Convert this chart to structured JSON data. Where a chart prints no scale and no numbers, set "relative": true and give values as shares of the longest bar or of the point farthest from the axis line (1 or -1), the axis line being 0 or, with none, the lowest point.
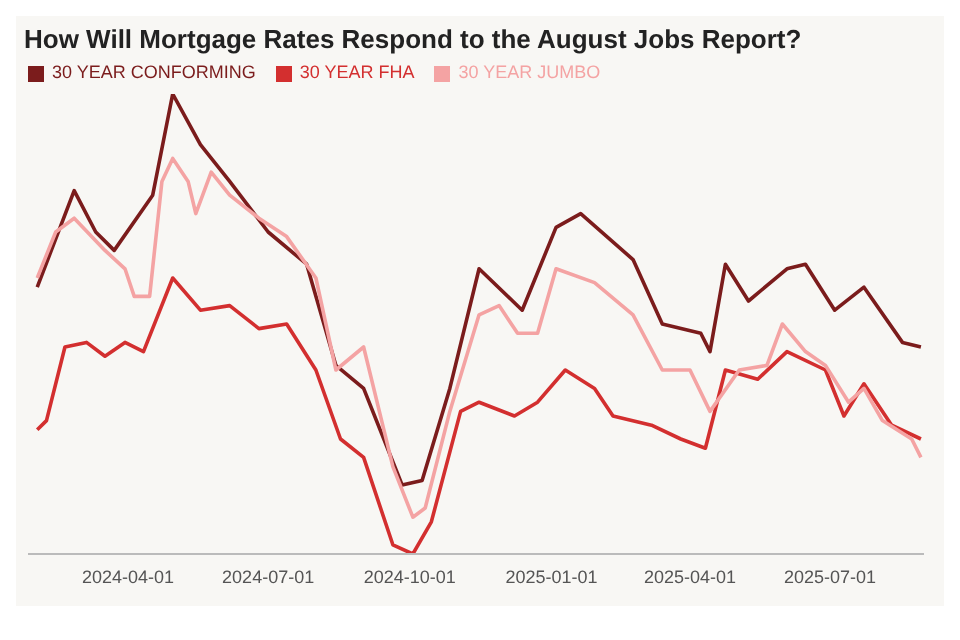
{
  "chart_data": {
    "type": "line",
    "title": "How Will Mortgage Rates Respond to the August Jobs Report?",
    "relative": true,
    "legend": "top left",
    "grid": false,
    "marker": "none",
    "line_style": "solid",
    "xlim": [
      "2024-01-27",
      "2025-08-31"
    ],
    "xticks": [
      "2024-04-01",
      "2024-07-01",
      "2024-10-01",
      "2025-01-01",
      "2025-04-01",
      "2025-07-01"
    ],
    "series": [
      {
        "name": "30 YEAR CONFORMING",
        "color": "#7b1c1c",
        "x": [
          "2024-02-02",
          "2024-02-26",
          "2024-03-11",
          "2024-03-23",
          "2024-04-17",
          "2024-04-30",
          "2024-05-18",
          "2024-06-06",
          "2024-07-01",
          "2024-07-26",
          "2024-08-14",
          "2024-09-01",
          "2024-09-26",
          "2024-10-09",
          "2024-10-27",
          "2024-11-15",
          "2024-12-13",
          "2025-01-04",
          "2025-01-20",
          "2025-02-23",
          "2025-03-14",
          "2025-04-08",
          "2025-04-14",
          "2025-04-24",
          "2025-05-09",
          "2025-06-03",
          "2025-06-15",
          "2025-07-04",
          "2025-07-23",
          "2025-08-17",
          "2025-08-29"
        ],
        "values": [
          0.58,
          0.79,
          0.7,
          0.66,
          0.78,
          1.0,
          0.89,
          0.81,
          0.7,
          0.63,
          0.41,
          0.36,
          0.15,
          0.16,
          0.36,
          0.62,
          0.53,
          0.71,
          0.74,
          0.64,
          0.5,
          0.48,
          0.44,
          0.63,
          0.55,
          0.62,
          0.63,
          0.53,
          0.58,
          0.46,
          0.45
        ]
      },
      {
        "name": "30 YEAR FHA",
        "color": "#d32f2f",
        "x": [
          "2024-02-02",
          "2024-02-08",
          "2024-02-20",
          "2024-03-05",
          "2024-03-17",
          "2024-03-30",
          "2024-04-11",
          "2024-04-30",
          "2024-05-18",
          "2024-06-06",
          "2024-06-25",
          "2024-07-13",
          "2024-08-01",
          "2024-08-17",
          "2024-09-01",
          "2024-09-20",
          "2024-10-03",
          "2024-10-15",
          "2024-11-03",
          "2024-11-15",
          "2024-12-08",
          "2024-12-23",
          "2025-01-10",
          "2025-01-29",
          "2025-02-10",
          "2025-03-07",
          "2025-03-26",
          "2025-04-11",
          "2025-04-24",
          "2025-05-15",
          "2025-06-03",
          "2025-06-28",
          "2025-07-10",
          "2025-07-23",
          "2025-08-10",
          "2025-08-29"
        ],
        "values": [
          0.27,
          0.29,
          0.45,
          0.46,
          0.43,
          0.46,
          0.44,
          0.6,
          0.53,
          0.54,
          0.49,
          0.5,
          0.4,
          0.25,
          0.21,
          0.02,
          0,
          0.07,
          0.31,
          0.33,
          0.3,
          0.33,
          0.4,
          0.36,
          0.3,
          0.28,
          0.25,
          0.23,
          0.4,
          0.38,
          0.44,
          0.4,
          0.3,
          0.37,
          0.28,
          0.25
        ]
      },
      {
        "name": "30 YEAR JUMBO",
        "color": "#f4a3a3",
        "x": [
          "2024-02-02",
          "2024-02-14",
          "2024-02-26",
          "2024-03-17",
          "2024-03-30",
          "2024-04-05",
          "2024-04-15",
          "2024-04-23",
          "2024-04-30",
          "2024-05-10",
          "2024-05-15",
          "2024-05-25",
          "2024-06-06",
          "2024-06-25",
          "2024-07-13",
          "2024-08-01",
          "2024-08-14",
          "2024-09-01",
          "2024-09-20",
          "2024-10-03",
          "2024-10-11",
          "2024-10-27",
          "2024-11-15",
          "2024-11-28",
          "2024-12-10",
          "2024-12-23",
          "2025-01-04",
          "2025-01-29",
          "2025-02-23",
          "2025-03-14",
          "2025-04-01",
          "2025-04-14",
          "2025-05-03",
          "2025-05-21",
          "2025-05-31",
          "2025-06-15",
          "2025-06-28",
          "2025-07-13",
          "2025-07-23",
          "2025-08-04",
          "2025-08-23",
          "2025-08-29"
        ],
        "values": [
          0.6,
          0.7,
          0.73,
          0.66,
          0.62,
          0.56,
          0.56,
          0.81,
          0.86,
          0.81,
          0.74,
          0.83,
          0.78,
          0.73,
          0.69,
          0.6,
          0.4,
          0.45,
          0.19,
          0.08,
          0.1,
          0.31,
          0.52,
          0.54,
          0.48,
          0.48,
          0.62,
          0.59,
          0.52,
          0.4,
          0.4,
          0.31,
          0.4,
          0.41,
          0.5,
          0.44,
          0.41,
          0.33,
          0.36,
          0.29,
          0.25,
          0.21
        ]
      }
    ]
  }
}
